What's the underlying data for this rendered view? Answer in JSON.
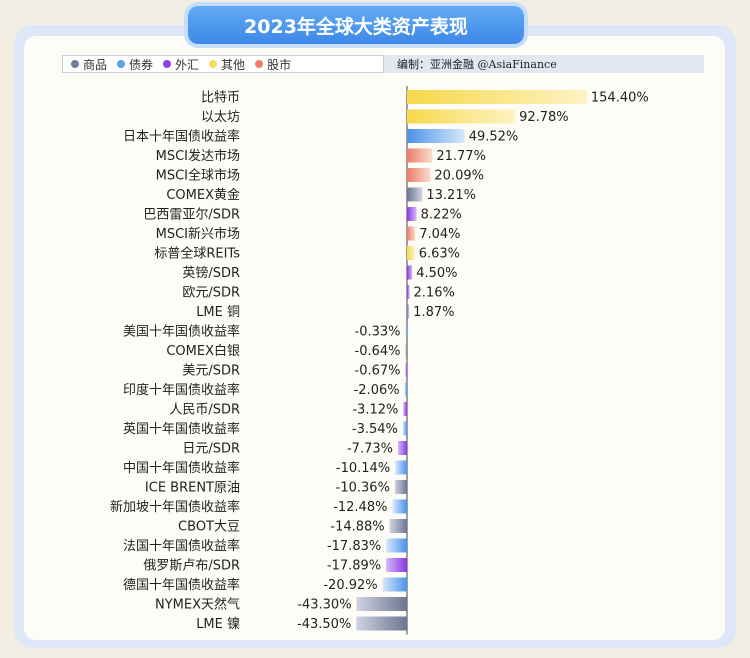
{
  "title": "2023年全球大类资产表现",
  "legend": [
    {
      "label": "商品",
      "color": "#717c98"
    },
    {
      "label": "债券",
      "color": "#5aa2ee"
    },
    {
      "label": "外汇",
      "color": "#8e3dea"
    },
    {
      "label": "其他",
      "color": "#f6dd60"
    },
    {
      "label": "股市",
      "color": "#ec7d67"
    }
  ],
  "credit": "编制：亚洲金融  @AsiaFinance",
  "colors": {
    "商品": [
      "#cfd3e2",
      "#6c7592"
    ],
    "债券": [
      "#d7e8fb",
      "#4b92ea"
    ],
    "外汇": [
      "#d7b8f7",
      "#8a35e6"
    ],
    "其他": [
      "#fdf3c3",
      "#f6d84b"
    ],
    "股市": [
      "#fbdccf",
      "#eb7c66"
    ]
  },
  "chart_data": {
    "type": "bar",
    "orientation": "horizontal",
    "value_suffix": "%",
    "categories": [
      "比特币",
      "以太坊",
      "日本十年国债收益率",
      "MSCI发达市场",
      "MSCI全球市场",
      "COMEX黄金",
      "巴西雷亚尔/SDR",
      "MSCI新兴市场",
      "标普全球REITs",
      "英镑/SDR",
      "欧元/SDR",
      "LME 铜",
      "美国十年国债收益率",
      "COMEX白银",
      "美元/SDR",
      "印度十年国债收益率",
      "人民币/SDR",
      "英国十年国债收益率",
      "日元/SDR",
      "中国十年国债收益率",
      "ICE BRENT原油",
      "新加坡十年国债收益率",
      "CBOT大豆",
      "法国十年国债收益率",
      "俄罗斯卢布/SDR",
      "德国十年国债收益率",
      "NYMEX天然气",
      "LME 镍"
    ],
    "labels": [
      "154.40%",
      "92.78%",
      "49.52%",
      "21.77%",
      "20.09%",
      "13.21%",
      "8.22%",
      "7.04%",
      "6.63%",
      "4.50%",
      "2.16%",
      "1.87%",
      "-0.33%",
      "-0.64%",
      "-0.67%",
      "-2.06%",
      "-3.12%",
      "-3.54%",
      "-7.73%",
      "-10.14%",
      "-10.36%",
      "-12.48%",
      "-14.88%",
      "-17.83%",
      "-17.89%",
      "-20.92%",
      "-43.30%",
      "-43.50%"
    ],
    "values": [
      154.4,
      92.78,
      49.52,
      21.77,
      20.09,
      13.21,
      8.22,
      7.04,
      6.63,
      4.5,
      2.16,
      1.87,
      -0.33,
      -0.64,
      -0.67,
      -2.06,
      -3.12,
      -3.54,
      -7.73,
      -10.14,
      -10.36,
      -12.48,
      -14.88,
      -17.83,
      -17.89,
      -20.92,
      -43.3,
      -43.5
    ],
    "groups": [
      "其他",
      "其他",
      "债券",
      "股市",
      "股市",
      "商品",
      "外汇",
      "股市",
      "其他",
      "外汇",
      "外汇",
      "商品",
      "债券",
      "商品",
      "外汇",
      "债券",
      "外汇",
      "债券",
      "外汇",
      "债券",
      "商品",
      "债券",
      "商品",
      "债券",
      "外汇",
      "债券",
      "商品",
      "商品"
    ]
  }
}
